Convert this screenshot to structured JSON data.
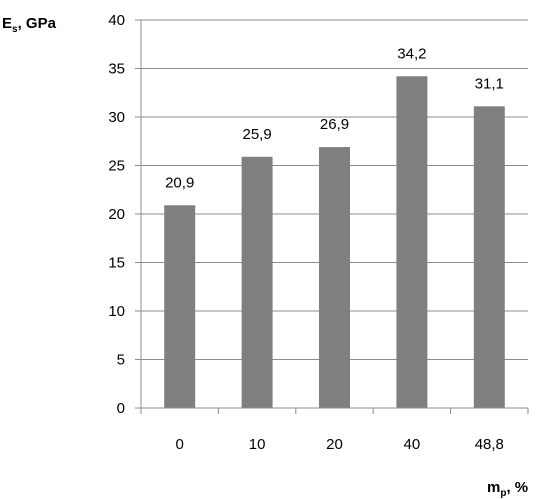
{
  "chart_data": {
    "type": "bar",
    "title": "",
    "ylabel": {
      "main": "E",
      "sub": "s",
      "rest": ", GPa"
    },
    "xlabel": {
      "main": "m",
      "sub": "p",
      "rest": ", %"
    },
    "categories": [
      "0",
      "10",
      "20",
      "40",
      "48,8"
    ],
    "values": [
      20.9,
      25.9,
      26.9,
      34.2,
      31.1
    ],
    "data_labels": [
      "20,9",
      "25,9",
      "26,9",
      "34,2",
      "31,1"
    ],
    "ylim": [
      0,
      40
    ],
    "yticks": [
      0,
      5,
      10,
      15,
      20,
      25,
      30,
      35,
      40
    ],
    "grid": true,
    "colors": {
      "bar": "#7f7f7f",
      "grid": "#8c8c8c",
      "axis": "#8c8c8c"
    }
  }
}
